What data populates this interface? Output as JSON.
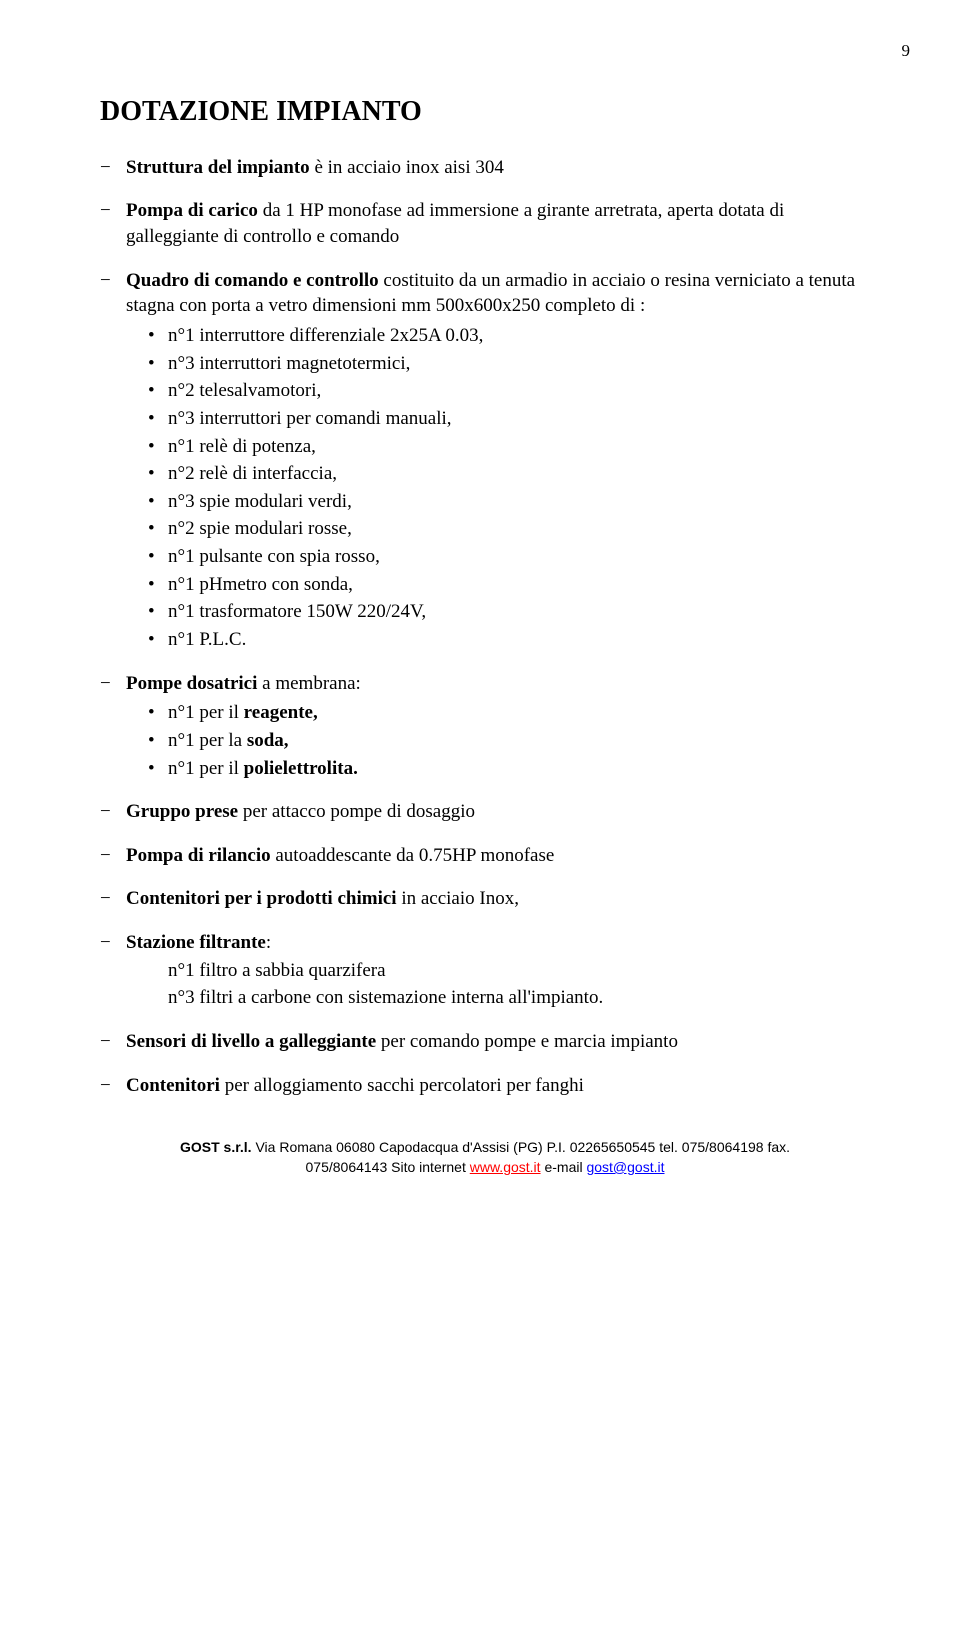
{
  "pageNumber": "9",
  "title": "DOTAZIONE IMPIANTO",
  "items": {
    "structure_bold": "Struttura del impianto",
    "structure_rest": " è in acciaio inox aisi 304",
    "pump_bold": "Pompa di carico",
    "pump_rest": " da 1 HP monofase ad immersione a girante   arretrata, aperta dotata di galleggiante di controllo e comando",
    "panel_bold": "Quadro di comando e controllo",
    "panel_rest": " costituito da un armadio in acciaio o resina verniciato a tenuta stagna con porta a vetro dimensioni mm 500x600x250 completo di :",
    "panel_items": [
      "n°1 interruttore differenziale 2x25A 0.03,",
      "n°3 interruttori magnetotermici,",
      "n°2 telesalvamotori,",
      "n°3 interruttori per comandi manuali,",
      "n°1 relè di potenza,",
      "n°2 relè di interfaccia,",
      "n°3 spie modulari verdi,",
      "n°2 spie modulari rosse,",
      "n°1 pulsante con spia rosso,",
      "n°1 pHmetro con sonda,",
      "n°1 trasformatore 150W 220/24V,",
      "n°1 P.L.C."
    ],
    "dosing_bold": "Pompe dosatrici",
    "dosing_rest": " a membrana:",
    "dosing_items": [
      {
        "pre": "n°1 per il ",
        "bold": "reagente,",
        "post": ""
      },
      {
        "pre": "n°1 per la ",
        "bold": "soda,",
        "post": ""
      },
      {
        "pre": "n°1 per il ",
        "bold": "polielettrolita.",
        "post": ""
      }
    ],
    "prese_bold": "Gruppo prese",
    "prese_rest": " per attacco pompe di dosaggio",
    "rilancio_bold": "Pompa di rilancio",
    "rilancio_rest": " autoaddescante da 0.75HP monofase",
    "contenitori_chimici_bold": "Contenitori per i prodotti chimici",
    "contenitori_chimici_rest": " in acciaio Inox,",
    "filtrante_bold": "Stazione filtrante",
    "filtrante_colon": ":",
    "filtrante_items": [
      "n°1 filtro a sabbia quarzifera",
      "n°3 filtri a carbone con sistemazione interna all'impianto."
    ],
    "sensori_bold": "Sensori di livello a galleggiante",
    "sensori_rest": "  per comando pompe e marcia impianto",
    "cont2_bold": "Contenitori",
    "cont2_rest": " per alloggiamento sacchi percolatori per fanghi"
  },
  "footer": {
    "line1_company": "GOST s.r.l.",
    "line1_addr": "  Via Romana  06080 Capodacqua d'Assisi (PG)   P.I. 02265650545   tel. 075/8064198 fax.",
    "line2_pre": "075/8064143 Sito internet ",
    "line2_link1": "www.gost.it",
    "line2_mid": "   e-mail ",
    "line2_link2": "gost@gost.it"
  }
}
